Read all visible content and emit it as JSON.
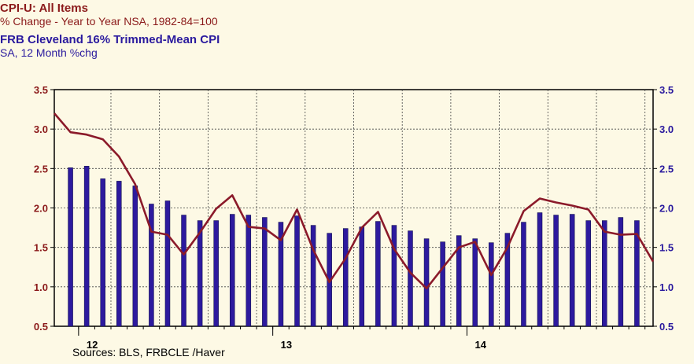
{
  "title_line1": "CPI-U: All Items",
  "title_line2": "% Change - Year to Year    NSA, 1982-84=100",
  "title_line3": "FRB Cleveland 16% Trimmed-Mean CPI",
  "title_line4": "SA, 12 Month %chg",
  "source": "Sources:  BLS, FRBCLE /Haver",
  "colors": {
    "line": "#8b1a2a",
    "bar": "#2d1a9e",
    "left_axis_text": "#8b1a1a",
    "right_axis_text": "#2a1a9e",
    "background": "#fdf9e5"
  },
  "chart_data": {
    "type": "bar+line",
    "ylim": [
      0.5,
      3.5
    ],
    "yticks": [
      "0.5",
      "1.0",
      "1.5",
      "2.0",
      "2.5",
      "3.0",
      "3.5"
    ],
    "year_labels": [
      "12",
      "13",
      "14"
    ],
    "grid": true,
    "series": [
      {
        "name": "CPI-U: All Items",
        "type": "line",
        "values": [
          3.2,
          2.96,
          2.93,
          2.87,
          2.65,
          2.3,
          1.7,
          1.66,
          1.41,
          1.69,
          1.99,
          2.16,
          1.76,
          1.74,
          1.59,
          1.98,
          1.47,
          1.06,
          1.36,
          1.75,
          1.95,
          1.48,
          1.18,
          0.98,
          1.24,
          1.5,
          1.57,
          1.15,
          1.5,
          1.96,
          2.12,
          2.07,
          2.03,
          1.98,
          1.7,
          1.66,
          1.67,
          1.32
        ]
      },
      {
        "name": "FRB Cleveland 16% Trimmed-Mean CPI",
        "type": "bar",
        "values": [
          2.51,
          2.53,
          2.37,
          2.34,
          2.28,
          2.05,
          2.09,
          1.91,
          1.84,
          1.84,
          1.92,
          1.91,
          1.88,
          1.82,
          1.9,
          1.78,
          1.68,
          1.74,
          1.76,
          1.83,
          1.78,
          1.71,
          1.61,
          1.57,
          1.65,
          1.61,
          1.56,
          1.68,
          1.82,
          1.94,
          1.91,
          1.92,
          1.84,
          1.84,
          1.88,
          1.84
        ]
      }
    ]
  }
}
